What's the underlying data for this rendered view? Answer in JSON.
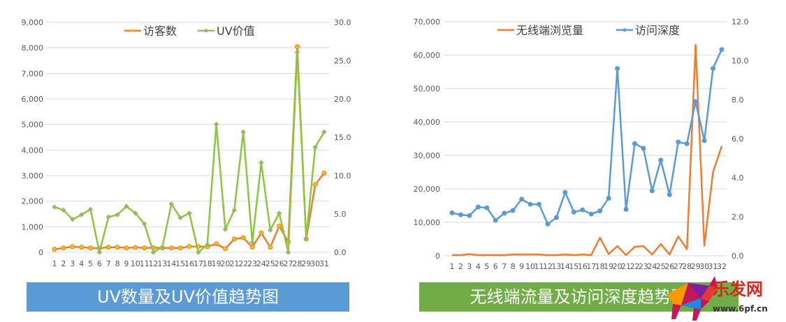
{
  "chart_data": [
    {
      "type": "line",
      "title": "UV数量及UV价值趋势图",
      "categories": [
        "1",
        "2",
        "3",
        "4",
        "5",
        "6",
        "7",
        "8",
        "9",
        "10",
        "11",
        "12",
        "13",
        "14",
        "15",
        "16",
        "17",
        "18",
        "19",
        "20",
        "21",
        "22",
        "23",
        "24",
        "25",
        "26",
        "27",
        "28",
        "29",
        "30",
        "31"
      ],
      "y_left_ticks": [
        "0",
        "1,000",
        "2,000",
        "3,000",
        "4,000",
        "5,000",
        "6,000",
        "7,000",
        "8,000",
        "9,000"
      ],
      "y_right_ticks": [
        "0.0",
        "5.0",
        "10.0",
        "15.0",
        "20.0",
        "25.0",
        "30.0"
      ],
      "ylim_left": [
        0,
        9000
      ],
      "ylim_right": [
        0,
        30
      ],
      "grid": true,
      "legend_position": "top",
      "series": [
        {
          "name": "访客数",
          "axis": "left",
          "color": "#ed7d31",
          "marker": "circle",
          "values": [
            120,
            170,
            220,
            200,
            170,
            160,
            200,
            200,
            170,
            190,
            170,
            180,
            170,
            170,
            170,
            230,
            230,
            220,
            330,
            140,
            520,
            570,
            200,
            760,
            200,
            1030,
            400,
            8050,
            520,
            2650,
            3100
          ]
        },
        {
          "name": "UV价值",
          "axis": "right",
          "color": "#8cc63f",
          "marker": "diamond",
          "values": [
            5.9,
            5.5,
            4.3,
            4.9,
            5.6,
            0.0,
            4.6,
            4.9,
            6.0,
            5.1,
            3.7,
            0.0,
            0.7,
            6.3,
            4.5,
            5.1,
            0.0,
            1.0,
            16.7,
            3.0,
            5.5,
            15.7,
            1.3,
            11.7,
            2.9,
            5.1,
            0.0,
            26.1,
            1.8,
            13.7,
            15.7
          ]
        }
      ]
    },
    {
      "type": "line",
      "title": "无线端流量及访问深度趋势图",
      "categories": [
        "1",
        "2",
        "3",
        "4",
        "5",
        "6",
        "7",
        "8",
        "9",
        "10",
        "11",
        "12",
        "13",
        "14",
        "15",
        "16",
        "17",
        "18",
        "19",
        "20",
        "21",
        "22",
        "23",
        "24",
        "25",
        "26",
        "27",
        "28",
        "29",
        "30",
        "31",
        "32"
      ],
      "y_left_ticks": [
        "0",
        "10,000",
        "20,000",
        "30,000",
        "40,000",
        "50,000",
        "60,000",
        "70,000"
      ],
      "y_right_ticks": [
        "0.0",
        "2.0",
        "4.0",
        "6.0",
        "8.0",
        "10.0",
        "12.0"
      ],
      "ylim_left": [
        0,
        70000
      ],
      "ylim_right": [
        0,
        12
      ],
      "grid": true,
      "legend_position": "top",
      "series": [
        {
          "name": "无线端浏览量",
          "axis": "left",
          "color": "#ed7d31",
          "marker": "none",
          "values": [
            200,
            200,
            500,
            200,
            200,
            200,
            200,
            400,
            400,
            400,
            400,
            200,
            200,
            400,
            200,
            400,
            200,
            5400,
            500,
            2900,
            200,
            2700,
            2900,
            400,
            3500,
            400,
            5800,
            2000,
            63000,
            3000,
            25000,
            32800
          ]
        },
        {
          "name": "访问深度",
          "axis": "right",
          "color": "#5b9bd5",
          "marker": "circle",
          "values": [
            2.2,
            2.1,
            2.06,
            2.5,
            2.46,
            1.82,
            2.18,
            2.32,
            2.9,
            2.64,
            2.64,
            1.63,
            1.96,
            3.25,
            2.24,
            2.35,
            2.14,
            2.3,
            2.95,
            9.6,
            2.38,
            5.75,
            5.51,
            3.33,
            4.9,
            3.13,
            5.83,
            5.74,
            7.9,
            5.9,
            9.6,
            10.57
          ]
        }
      ]
    }
  ],
  "watermark": {
    "brand": "乐发网",
    "url": "www.6pf.cn"
  }
}
